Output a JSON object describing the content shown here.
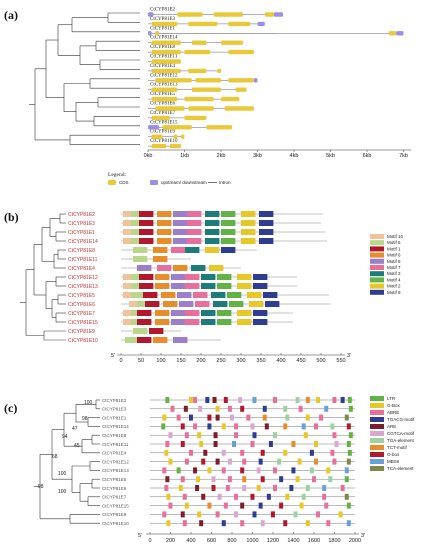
{
  "panel_a": {
    "label": "(a)",
    "genes": [
      "CtCYP81E2",
      "CtCYP81E3",
      "CtCYP81E1",
      "CtCYP81E14",
      "CtCYP81E8",
      "CtCYP81E11",
      "CtCYP81E4",
      "CtCYP81E12",
      "CtCYP81E13",
      "CtCYP81E5",
      "CtCYP81E6",
      "CtCYP81E7",
      "CtCYP81E15",
      "CtCYP81E9",
      "CtCYP81E10"
    ],
    "axis_ticks": [
      "0kb",
      "1kb",
      "2kb",
      "3kb",
      "4kb",
      "5kb",
      "6kb",
      "7kb"
    ],
    "legend_title": "Legend:",
    "legend_items": [
      {
        "label": "CDS",
        "color": "#e8c93a"
      },
      {
        "label": "upstream/ downstream",
        "color": "#9b8fe0"
      },
      {
        "label": "Intron",
        "color": "#555555"
      }
    ]
  },
  "panel_b": {
    "label": "(b)",
    "genes": [
      "CtCYP81E2",
      "CtCYP81E3",
      "CtCYP81E1",
      "CtCYP81E14",
      "CtCYP81E8",
      "CtCYP81E11",
      "CtCYP81E4",
      "CtCYP81E12",
      "CtCYP81E13",
      "CtCYP81E5",
      "CtCYP81E6",
      "CtCYP81E7",
      "CtCYP81E15",
      "CtCYP81E9",
      "CtCYP81E10"
    ],
    "axis_ticks": [
      "0",
      "50",
      "100",
      "150",
      "200",
      "250",
      "300",
      "350",
      "400",
      "450",
      "500",
      "550"
    ],
    "axis_start": "5'",
    "axis_end": "3'",
    "motifs": [
      {
        "label": "Motif 10",
        "color": "#f1c39a"
      },
      {
        "label": "Motif 5",
        "color": "#b9d68a"
      },
      {
        "label": "Motif 1",
        "color": "#b0182e"
      },
      {
        "label": "Motif 6",
        "color": "#e88d2b"
      },
      {
        "label": "Motif 8",
        "color": "#9b7fc9"
      },
      {
        "label": "Motif 7",
        "color": "#e66f9c"
      },
      {
        "label": "Motif 3",
        "color": "#1d7b7b"
      },
      {
        "label": "Motif 4",
        "color": "#62b246"
      },
      {
        "label": "Motif 2",
        "color": "#e7c829"
      },
      {
        "label": "Motif 9",
        "color": "#2e3d8f"
      }
    ]
  },
  "panel_c": {
    "label": "(c)",
    "genes": [
      "CtCYP81E2",
      "CtCYP81E3",
      "CtCYP81E1",
      "CtCYP81E14",
      "CtCYP81E8",
      "CtCYP81E11",
      "CtCYP81E4",
      "CtCYP81E12",
      "CtCYP81E13",
      "CtCYP81E5",
      "CtCYP81E6",
      "CtCYP81E7",
      "CtCYP81E15",
      "CtCYP81E9",
      "CtCYP81E10"
    ],
    "bootstrap": [
      "100",
      "98",
      "47",
      "45",
      "94",
      "68",
      "100",
      "100",
      "98"
    ],
    "axis_ticks": [
      "0",
      "200",
      "400",
      "600",
      "800",
      "1000",
      "1200",
      "1400",
      "1600",
      "1800",
      "2000"
    ],
    "axis_start": "5'",
    "axis_end": "3'",
    "elements": [
      {
        "label": "LTR",
        "color": "#62b246"
      },
      {
        "label": "G-Box",
        "color": "#e7c829"
      },
      {
        "label": "ABRE",
        "color": "#e66f9c"
      },
      {
        "label": "TGACG-motif",
        "color": "#2e3d8f"
      },
      {
        "label": "ARE",
        "color": "#7a1e2c"
      },
      {
        "label": "CGTCA-motif",
        "color": "#d8a8d0"
      },
      {
        "label": "TGA-element",
        "color": "#9fd0a0"
      },
      {
        "label": "TCT-motif",
        "color": "#e88d2b"
      },
      {
        "label": "O-box",
        "color": "#b0182e"
      },
      {
        "label": "MBSII",
        "color": "#6aa0d8"
      },
      {
        "label": "TCA-element",
        "color": "#7e8a4a"
      }
    ]
  }
}
